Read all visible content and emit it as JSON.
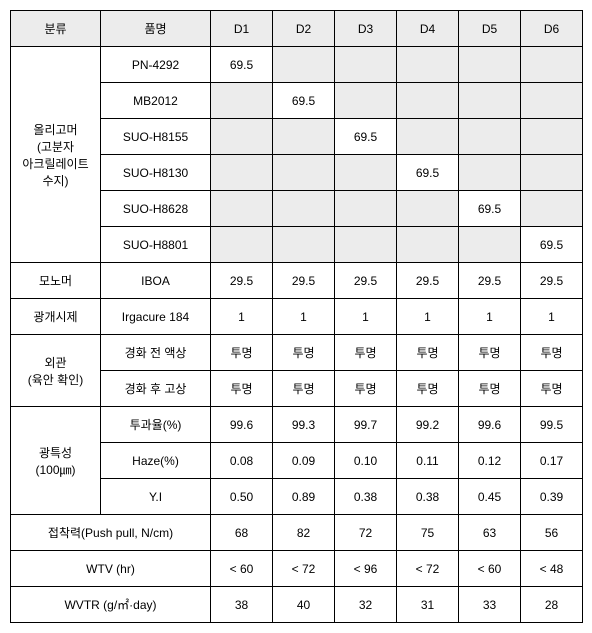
{
  "header": [
    "분류",
    "품명",
    "D1",
    "D2",
    "D3",
    "D4",
    "D5",
    "D6"
  ],
  "oligomer": {
    "label": "올리고머\n(고분자\n아크릴레이트\n수지)",
    "rows": [
      {
        "name": "PN-4292",
        "vals": [
          "69.5",
          "",
          "",
          "",
          "",
          ""
        ]
      },
      {
        "name": "MB2012",
        "vals": [
          "",
          "69.5",
          "",
          "",
          "",
          ""
        ]
      },
      {
        "name": "SUO-H8155",
        "vals": [
          "",
          "",
          "69.5",
          "",
          "",
          ""
        ]
      },
      {
        "name": "SUO-H8130",
        "vals": [
          "",
          "",
          "",
          "69.5",
          "",
          ""
        ]
      },
      {
        "name": "SUO-H8628",
        "vals": [
          "",
          "",
          "",
          "",
          "69.5",
          ""
        ]
      },
      {
        "name": "SUO-H8801",
        "vals": [
          "",
          "",
          "",
          "",
          "",
          "69.5"
        ]
      }
    ]
  },
  "monomer": {
    "label": "모노머",
    "name": "IBOA",
    "vals": [
      "29.5",
      "29.5",
      "29.5",
      "29.5",
      "29.5",
      "29.5"
    ]
  },
  "initiator": {
    "label": "광개시제",
    "name": "Irgacure 184",
    "vals": [
      "1",
      "1",
      "1",
      "1",
      "1",
      "1"
    ]
  },
  "appearance": {
    "label": "외관\n(육안 확인)",
    "rows": [
      {
        "name": "경화 전 액상",
        "vals": [
          "투명",
          "투명",
          "투명",
          "투명",
          "투명",
          "투명"
        ]
      },
      {
        "name": "경화 후 고상",
        "vals": [
          "투명",
          "투명",
          "투명",
          "투명",
          "투명",
          "투명"
        ]
      }
    ]
  },
  "optical": {
    "label": "광특성\n(100㎛)",
    "rows": [
      {
        "name": "투과율(%)",
        "vals": [
          "99.6",
          "99.3",
          "99.7",
          "99.2",
          "99.6",
          "99.5"
        ]
      },
      {
        "name": "Haze(%)",
        "vals": [
          "0.08",
          "0.09",
          "0.10",
          "0.11",
          "0.12",
          "0.17"
        ]
      },
      {
        "name": "Y.I",
        "vals": [
          "0.50",
          "0.89",
          "0.38",
          "0.38",
          "0.45",
          "0.39"
        ]
      }
    ]
  },
  "adhesion": {
    "label": "접착력(Push pull, N/cm)",
    "vals": [
      "68",
      "82",
      "72",
      "75",
      "63",
      "56"
    ]
  },
  "wtv": {
    "label": "WTV (hr)",
    "vals": [
      "< 60",
      "< 72",
      "< 96",
      "< 72",
      "< 60",
      "< 48"
    ]
  },
  "wvtr": {
    "label": "WVTR (g/㎡·day)",
    "vals": [
      "38",
      "40",
      "32",
      "31",
      "33",
      "28"
    ]
  }
}
